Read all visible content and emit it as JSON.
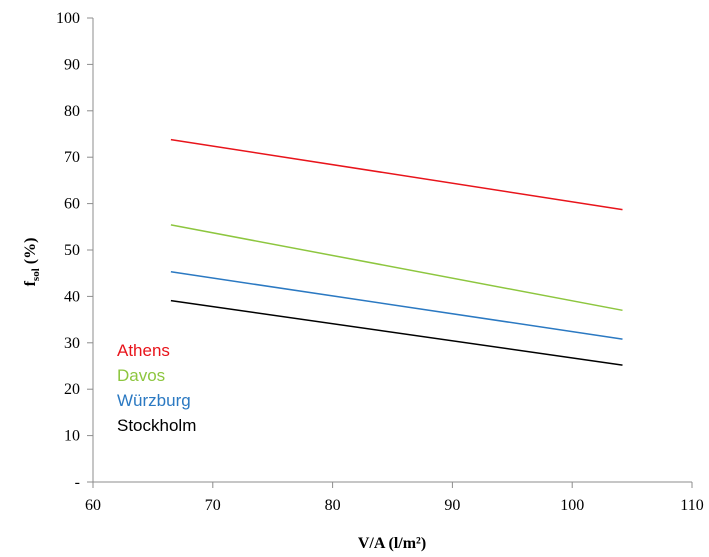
{
  "chart_data": {
    "type": "line",
    "title": "",
    "xlabel": "V/A (l/m²)",
    "ylabel": {
      "main": "f",
      "sub": "sol",
      "rest": " (%)"
    },
    "xlim": [
      60,
      110
    ],
    "ylim": [
      0,
      100
    ],
    "xticks": [
      60,
      70,
      80,
      90,
      100,
      110
    ],
    "yticks": [
      0,
      10,
      20,
      30,
      40,
      50,
      60,
      70,
      80,
      90,
      100
    ],
    "ytick_labels": [
      "-",
      "10",
      "20",
      "30",
      "40",
      "50",
      "60",
      "70",
      "80",
      "90",
      "100"
    ],
    "grid": false,
    "legend_position": "inside-left",
    "series": [
      {
        "name": "Athens",
        "color": "#e8141b",
        "x": [
          66.5,
          104.2
        ],
        "y": [
          73.8,
          58.7
        ]
      },
      {
        "name": "Davos",
        "color": "#8dc63f",
        "x": [
          66.5,
          104.2
        ],
        "y": [
          55.4,
          37.0
        ]
      },
      {
        "name": "Würzburg",
        "color": "#2b79c2",
        "x": [
          66.5,
          104.2
        ],
        "y": [
          45.3,
          30.8
        ]
      },
      {
        "name": "Stockholm",
        "color": "#000000",
        "x": [
          66.5,
          104.2
        ],
        "y": [
          39.1,
          25.2
        ]
      }
    ]
  }
}
